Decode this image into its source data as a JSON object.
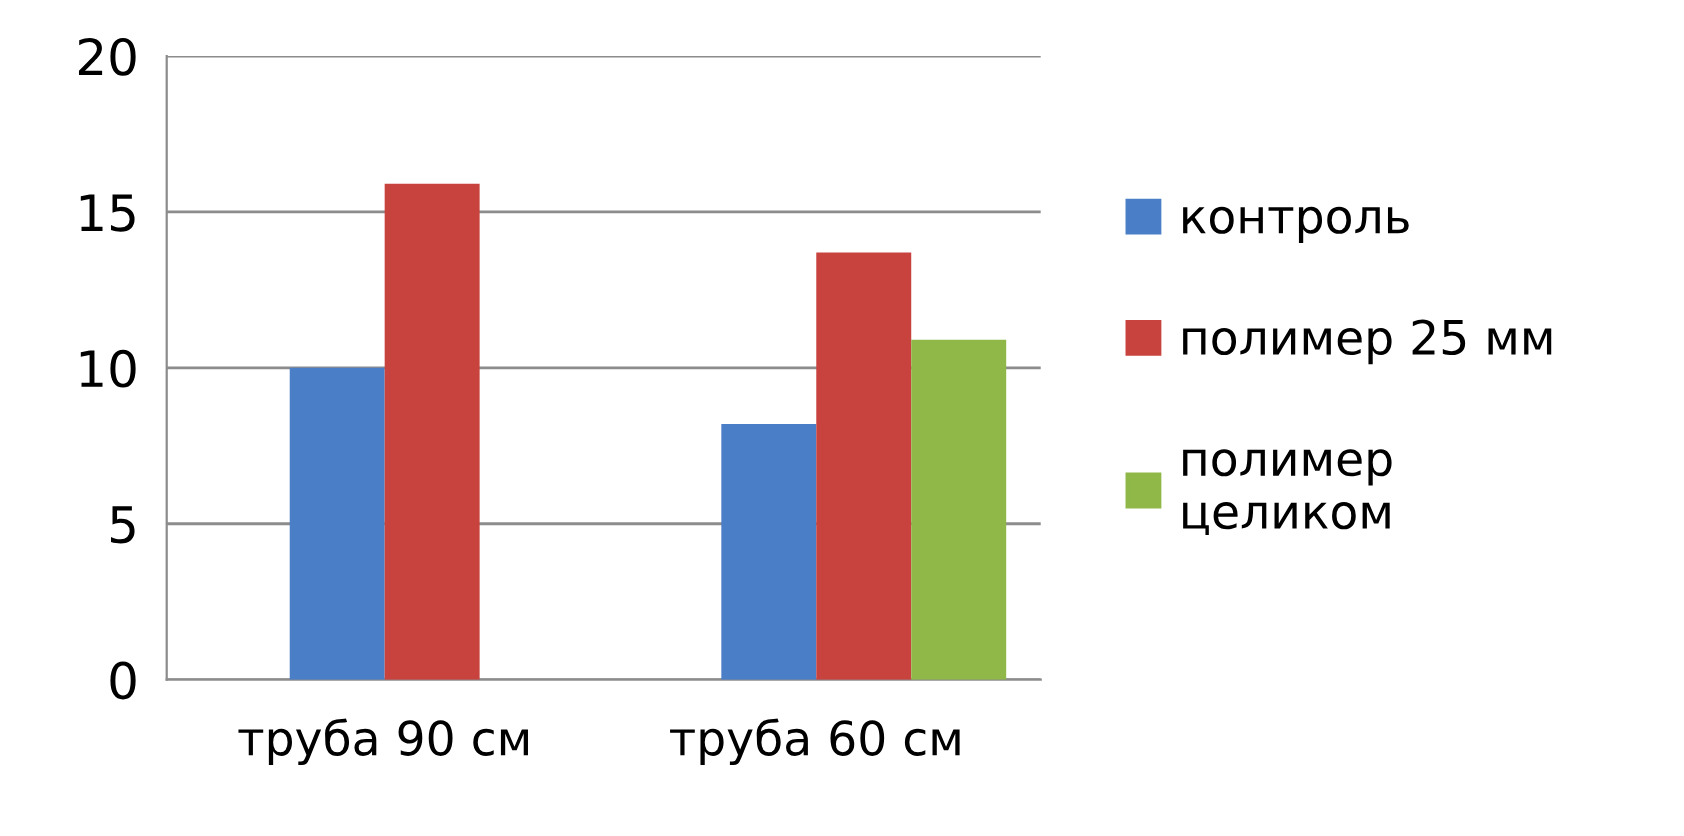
{
  "chart_data": {
    "type": "bar",
    "categories": [
      "труба 90 см",
      "труба 60 см"
    ],
    "series": [
      {
        "name": "контроль",
        "color": "#4a7fc8",
        "values": [
          10,
          8.2
        ]
      },
      {
        "name": "полимер 25 мм",
        "color": "#c8423e",
        "values": [
          15.9,
          13.7
        ]
      },
      {
        "name": "полимер\nцеликом",
        "color": "#8fb848",
        "values": [
          null,
          10.9
        ]
      }
    ],
    "ylim": [
      0,
      20
    ],
    "yticks": [
      0,
      5,
      10,
      15,
      20
    ],
    "grid": "y",
    "legend": "right"
  }
}
